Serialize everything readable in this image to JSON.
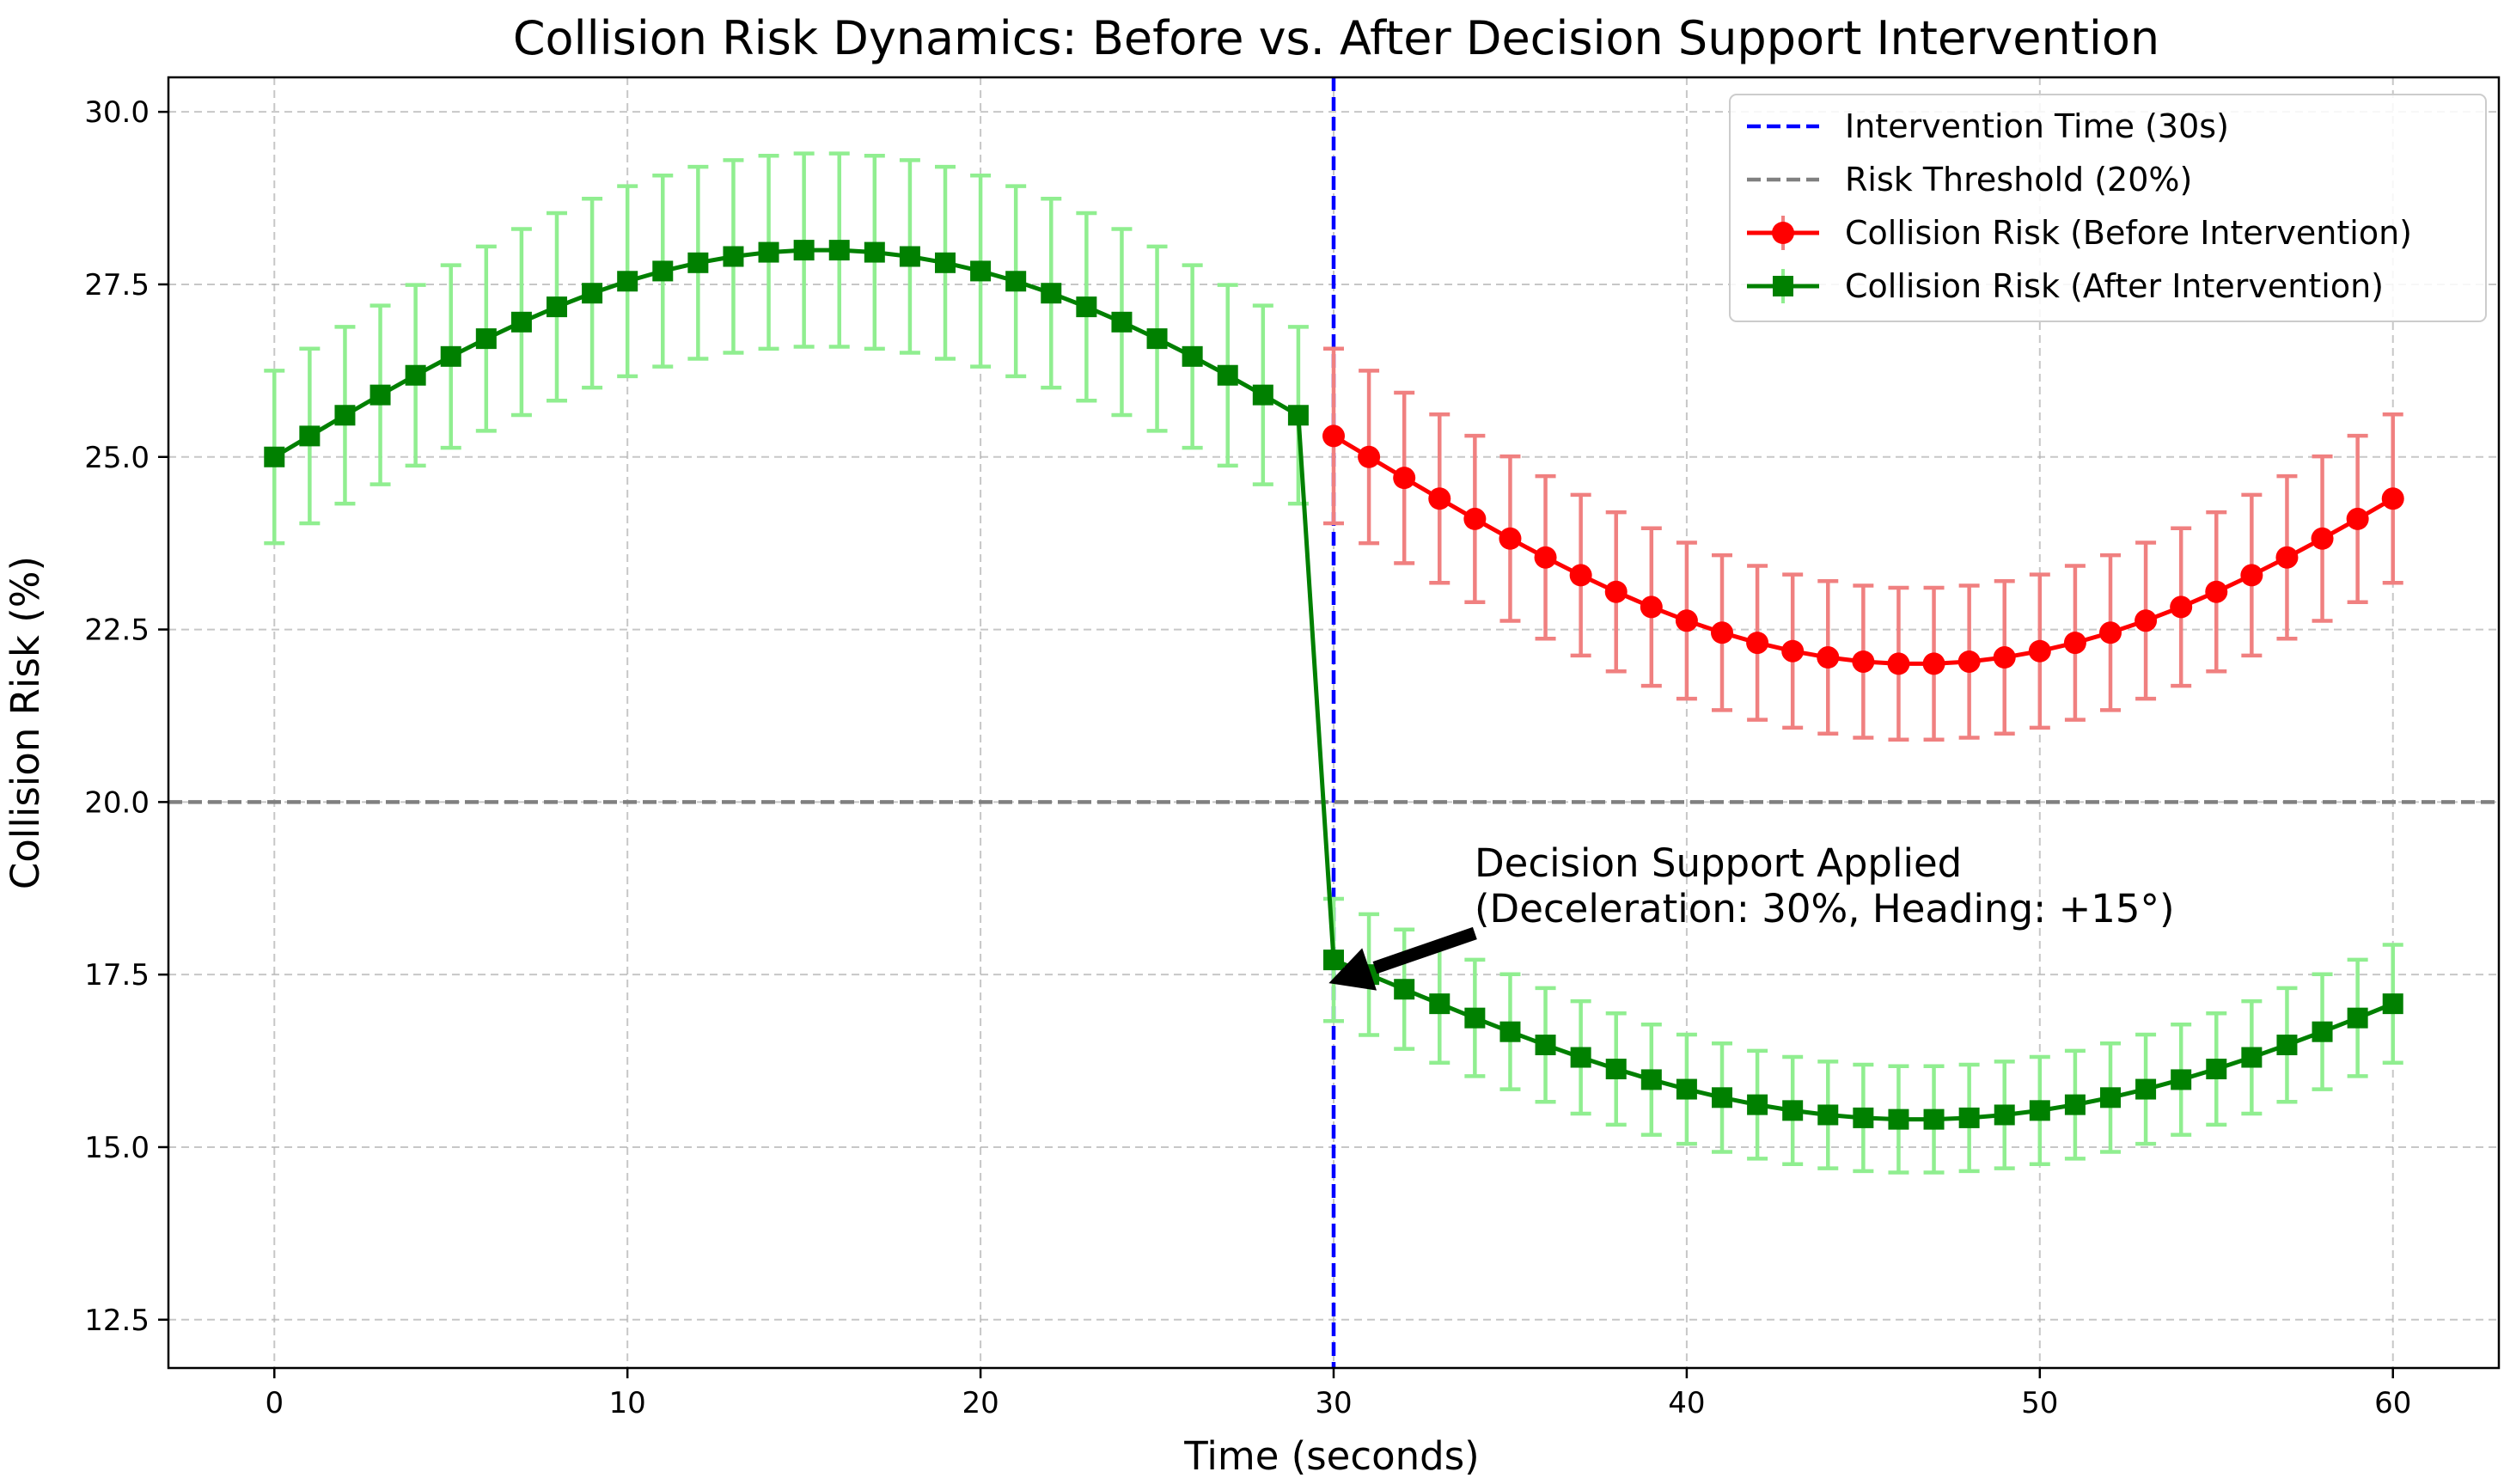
{
  "chart_data": {
    "type": "line",
    "title": "Collision Risk Dynamics: Before vs. After Decision Support Intervention",
    "xlabel": "Time (seconds)",
    "ylabel": "Collision Risk (%)",
    "xlim": [
      -3,
      63
    ],
    "ylim": [
      11.8,
      30.5
    ],
    "xticks": [
      0,
      10,
      20,
      30,
      40,
      50,
      60
    ],
    "xtick_labels": [
      "0",
      "10",
      "20",
      "30",
      "40",
      "50",
      "60"
    ],
    "yticks": [
      12.5,
      15.0,
      17.5,
      20.0,
      22.5,
      25.0,
      27.5,
      30.0
    ],
    "ytick_labels": [
      "12.5",
      "15.0",
      "17.5",
      "20.0",
      "22.5",
      "25.0",
      "27.5",
      "30.0"
    ],
    "grid": true,
    "legend_position": "top-right",
    "error_bars": "±5% of value",
    "reference_lines": [
      {
        "orientation": "vertical",
        "value": 30,
        "label": "Intervention Time (30s)",
        "color": "#0000ff",
        "style": "dashed"
      },
      {
        "orientation": "horizontal",
        "value": 20,
        "label": "Risk Threshold (20%)",
        "color": "#808080",
        "style": "dashed"
      }
    ],
    "series": [
      {
        "name": "Collision Risk (Before Intervention)",
        "color": "#ff0000",
        "error_color": "#f08080",
        "marker": "circle",
        "base": 25,
        "amplitude": 3,
        "period": 62,
        "x_start": 0,
        "x_end": 60
      },
      {
        "name": "Collision Risk (After Intervention)",
        "color": "#008000",
        "error_color": "#90ee90",
        "marker": "square",
        "base": 25,
        "amplitude": 3,
        "period": 62,
        "x_start": 0,
        "x_end": 60,
        "factor_after_intervention": 0.7,
        "intervention_x": 30
      }
    ],
    "annotation": {
      "lines": [
        "Decision Support Applied",
        "(Deceleration: 30%, Heading: +15°)"
      ],
      "points_to": {
        "x": 30,
        "y": 17.4
      }
    }
  }
}
